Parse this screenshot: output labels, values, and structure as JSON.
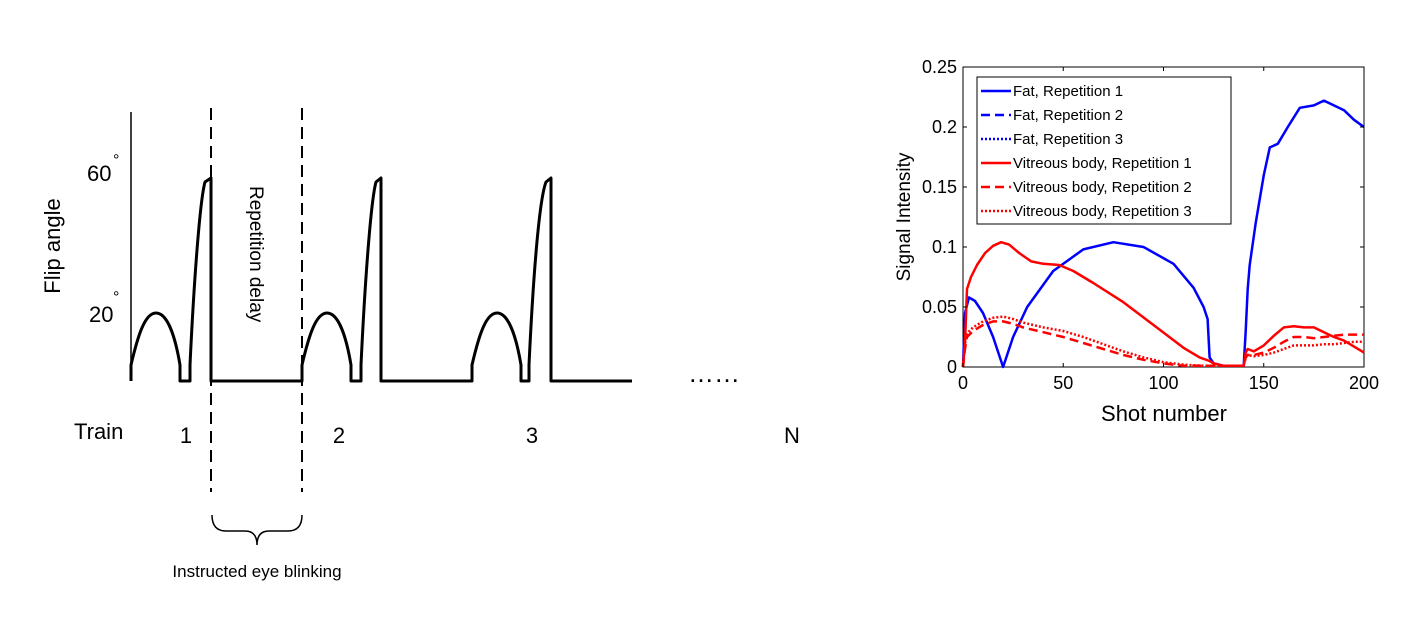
{
  "sequence_diagram": {
    "ylabel": "Flip angle",
    "level_high": "60",
    "level_low": "20",
    "degree_mark": "°",
    "train_label": "Train",
    "train_numbers": [
      "1",
      "2",
      "3"
    ],
    "ellipsis": "……",
    "train_last": "N",
    "repetition_delay": "Repetition delay",
    "blink_label": "Instructed eye blinking"
  },
  "chart_data": {
    "type": "line",
    "title": "",
    "xlabel": "Shot number",
    "ylabel": "Signal Intensity",
    "xlim": [
      0,
      200
    ],
    "ylim": [
      0,
      0.25
    ],
    "xticks": [
      0,
      50,
      100,
      150,
      200
    ],
    "yticks": [
      0,
      0.05,
      0.1,
      0.15,
      0.2,
      0.25
    ],
    "xtick_labels": [
      "0",
      "50",
      "100",
      "150",
      "200"
    ],
    "ytick_labels": [
      "0",
      "0.05",
      "0.1",
      "0.15",
      "0.2",
      "0.25"
    ],
    "grid": false,
    "legend_position": "top-left",
    "series": [
      {
        "name": "Fat, Repetition 1",
        "color": "#0000ff",
        "style": "solid",
        "x": [
          0,
          1,
          3,
          6,
          10,
          15,
          20,
          25,
          32,
          45,
          60,
          75,
          90,
          105,
          115,
          120,
          122,
          123,
          125,
          130,
          135,
          140,
          141,
          142,
          143,
          146,
          150,
          153,
          157,
          162,
          168,
          175,
          180,
          185,
          190,
          195,
          200
        ],
        "y": [
          0,
          0.045,
          0.058,
          0.055,
          0.045,
          0.025,
          0.0,
          0.025,
          0.05,
          0.08,
          0.098,
          0.104,
          0.1,
          0.086,
          0.066,
          0.05,
          0.04,
          0.008,
          0.003,
          0.001,
          0.001,
          0.001,
          0.03,
          0.065,
          0.085,
          0.12,
          0.16,
          0.183,
          0.186,
          0.2,
          0.216,
          0.218,
          0.222,
          0.218,
          0.214,
          0.206,
          0.2
        ]
      },
      {
        "name": "Fat, Repetition 2",
        "color": "#0000ff",
        "style": "dashed",
        "x": [],
        "y": []
      },
      {
        "name": "Fat, Repetition 3",
        "color": "#0000ff",
        "style": "dotted",
        "x": [],
        "y": []
      },
      {
        "name": "Vitreous body, Repetition 1",
        "color": "#ff0000",
        "style": "solid",
        "x": [
          0,
          1,
          2,
          4,
          7,
          11,
          15,
          19,
          23,
          28,
          34,
          40,
          48,
          55,
          65,
          80,
          95,
          110,
          118,
          123,
          125,
          130,
          135,
          140,
          141,
          142,
          145,
          150,
          155,
          160,
          165,
          170,
          175,
          180,
          185,
          190,
          195,
          200
        ],
        "y": [
          0,
          0.02,
          0.065,
          0.075,
          0.085,
          0.095,
          0.101,
          0.104,
          0.102,
          0.095,
          0.088,
          0.086,
          0.085,
          0.08,
          0.07,
          0.054,
          0.035,
          0.016,
          0.008,
          0.005,
          0.003,
          0.001,
          0.001,
          0.001,
          0.012,
          0.015,
          0.013,
          0.018,
          0.026,
          0.033,
          0.034,
          0.033,
          0.033,
          0.029,
          0.025,
          0.022,
          0.017,
          0.012
        ]
      },
      {
        "name": "Vitreous body, Repetition 2",
        "color": "#ff0000",
        "style": "dashed",
        "x": [
          0,
          1,
          2,
          5,
          10,
          15,
          20,
          25,
          30,
          40,
          50,
          60,
          70,
          80,
          90,
          100,
          110,
          120,
          125,
          130,
          135,
          140,
          141,
          142,
          145,
          150,
          155,
          160,
          165,
          170,
          175,
          180,
          185,
          190,
          195,
          200
        ],
        "y": [
          0,
          0.015,
          0.025,
          0.03,
          0.035,
          0.038,
          0.038,
          0.036,
          0.033,
          0.029,
          0.025,
          0.02,
          0.015,
          0.01,
          0.006,
          0.003,
          0.001,
          0.001,
          0.001,
          0.001,
          0.001,
          0.001,
          0.008,
          0.01,
          0.01,
          0.012,
          0.016,
          0.021,
          0.025,
          0.025,
          0.024,
          0.025,
          0.026,
          0.027,
          0.027,
          0.027
        ]
      },
      {
        "name": "Vitreous body, Repetition 3",
        "color": "#ff0000",
        "style": "dotted",
        "x": [
          0,
          1,
          2,
          5,
          10,
          15,
          20,
          25,
          30,
          40,
          50,
          60,
          70,
          80,
          90,
          100,
          110,
          120,
          125,
          130,
          135,
          140,
          141,
          142,
          145,
          150,
          155,
          160,
          165,
          170,
          175,
          180,
          185,
          190,
          195,
          200
        ],
        "y": [
          0,
          0.02,
          0.028,
          0.033,
          0.038,
          0.041,
          0.042,
          0.04,
          0.037,
          0.033,
          0.03,
          0.025,
          0.019,
          0.013,
          0.008,
          0.004,
          0.002,
          0.001,
          0.001,
          0.001,
          0.001,
          0.001,
          0.008,
          0.01,
          0.009,
          0.01,
          0.012,
          0.015,
          0.018,
          0.018,
          0.018,
          0.019,
          0.019,
          0.02,
          0.021,
          0.021
        ]
      }
    ]
  }
}
